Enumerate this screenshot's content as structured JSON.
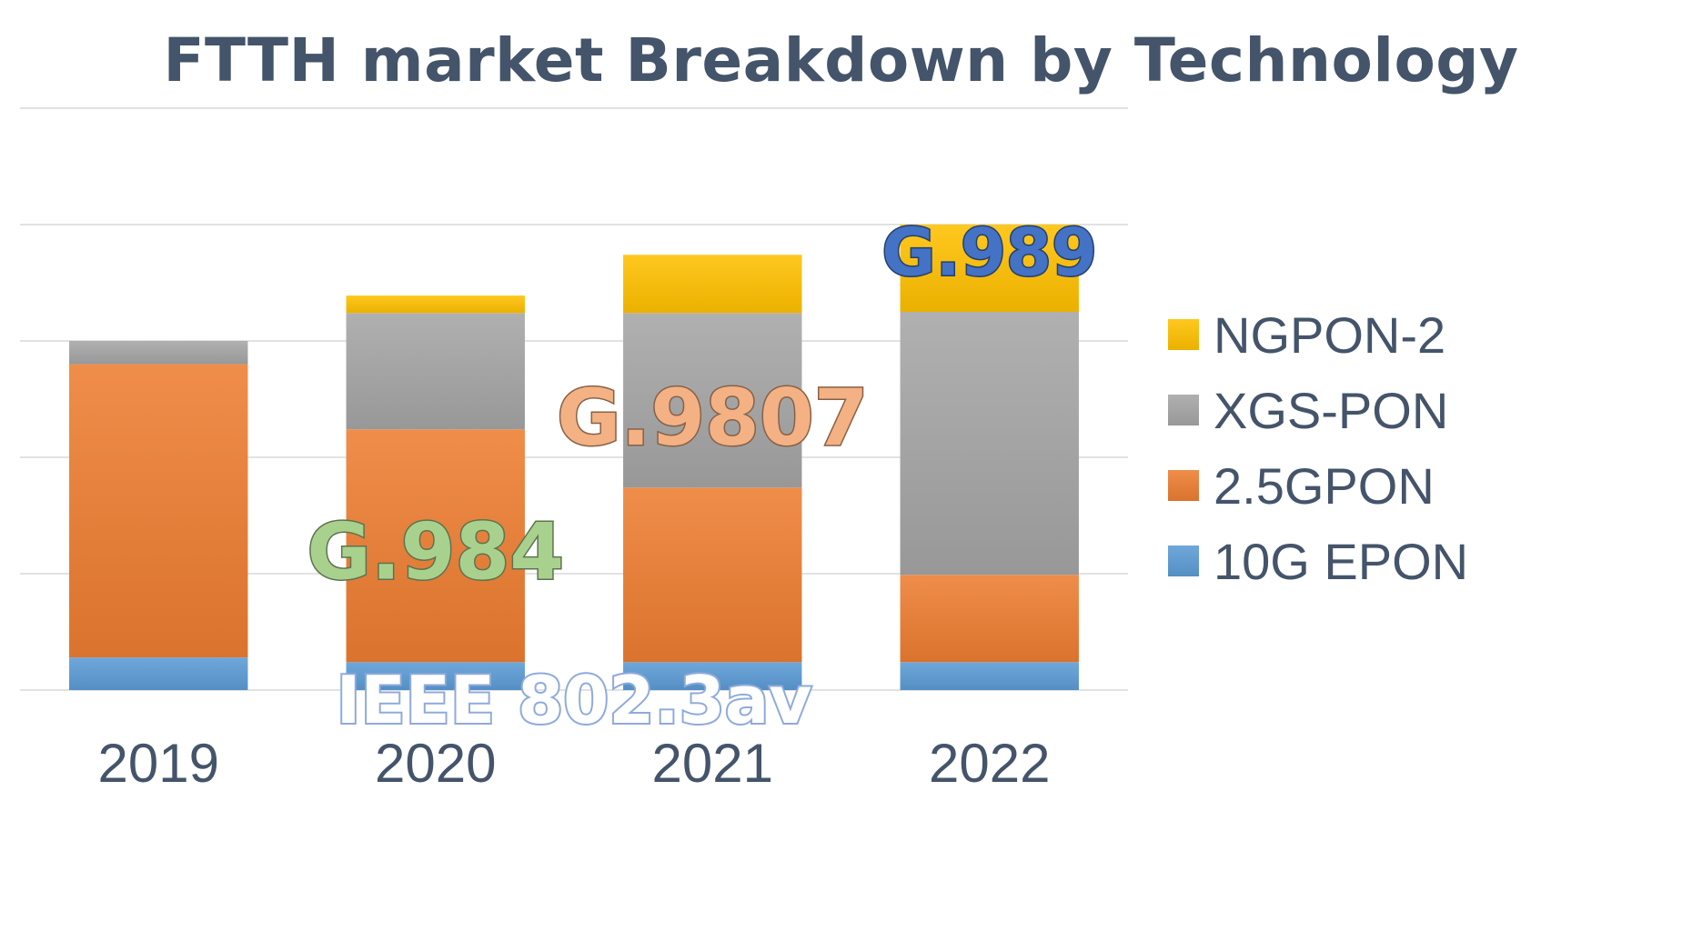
{
  "chart_data": {
    "type": "bar",
    "stacked": true,
    "title": "FTTH market Breakdown by Technology",
    "xlabel": "",
    "ylabel": "",
    "categories": [
      "2019",
      "2020",
      "2021",
      "2022"
    ],
    "ylim": [
      0,
      5
    ],
    "grid": true,
    "legend_position": "right",
    "series": [
      {
        "name": "10G EPON",
        "color": "#5b9bd5",
        "values": [
          0.28,
          0.24,
          0.24,
          0.24
        ]
      },
      {
        "name": "2.5GPON",
        "color": "#ed7d31",
        "values": [
          2.52,
          2.0,
          1.5,
          0.75
        ]
      },
      {
        "name": "XGS-PON",
        "color": "#a5a5a5",
        "values": [
          0.2,
          1.0,
          1.5,
          2.26
        ]
      },
      {
        "name": "NGPON-2",
        "color": "#ffc000",
        "values": [
          0.0,
          0.15,
          0.5,
          0.75
        ]
      }
    ],
    "annotations": [
      {
        "text": "G.984",
        "color": "#a9d18e",
        "category": "2020",
        "y": 1.2
      },
      {
        "text": "G.9807",
        "color": "#f4b183",
        "category": "2021",
        "y": 2.35
      },
      {
        "text": "G.989",
        "color": "#4472c4",
        "category": "2022",
        "y": 3.77
      },
      {
        "text": "IEEE 802.3av",
        "color": "#8faadc",
        "category": "2020-2021",
        "y": -0.08
      }
    ]
  }
}
